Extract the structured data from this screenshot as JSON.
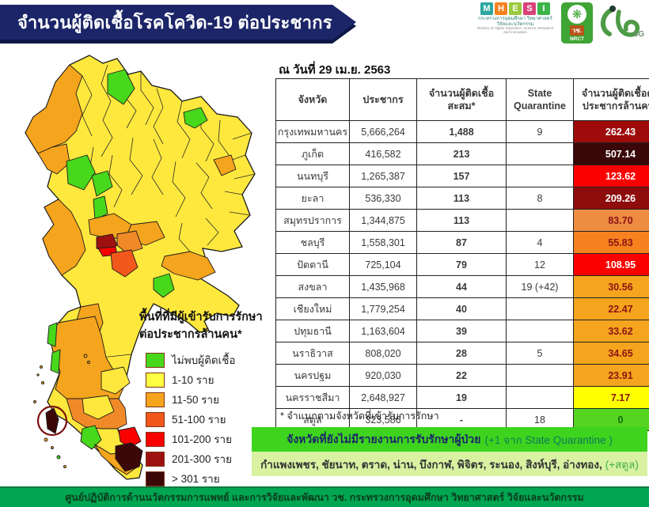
{
  "banner": {
    "title": "จำนวนผู้ติดเชื้อโรคโควิด-19 ต่อประชากร"
  },
  "logos": {
    "mhesi": {
      "letters": [
        {
          "ch": "M",
          "color": "#2ba7a0"
        },
        {
          "ch": "H",
          "color": "#f58220"
        },
        {
          "ch": "E",
          "color": "#9aca3c"
        },
        {
          "ch": "S",
          "color": "#d94179"
        },
        {
          "ch": "I",
          "color": "#3bb54a"
        }
      ],
      "line1": "กระทรวงการอุดมศึกษา วิทยาศาสตร์ วิจัยและนวัตกรรม",
      "line2": "Ministry of Higher Education, Science, Research and Innovation"
    },
    "nrct": {
      "emblem": "wheel-emblem",
      "thai": "วช.",
      "en": "NRCT"
    },
    "wch5g": {
      "label": "5G"
    }
  },
  "date_label": "ณ วันที่ 29 เม.ย. 2563",
  "table": {
    "headers": [
      "จังหวัด",
      "ประชากร",
      "จำนวนผู้ติดเชื้อ\nสะสม*",
      "State\nQuarantine",
      "จำนวนผู้ติดเชื้อต่อ\nประชากรล้านคน*"
    ],
    "rows": [
      {
        "province": "กรุงเทพมหานคร",
        "population": "5,666,264",
        "cases": "1,488",
        "quarantine": "9",
        "rate": "262.43",
        "rate_bg": "#9e0b0b",
        "rate_fg": "#ffffff"
      },
      {
        "province": "ภูเก็ต",
        "population": "416,582",
        "cases": "213",
        "quarantine": "",
        "rate": "507.14",
        "rate_bg": "#3a0708",
        "rate_fg": "#ffffff"
      },
      {
        "province": "นนทบุรี",
        "population": "1,265,387",
        "cases": "157",
        "quarantine": "",
        "rate": "123.62",
        "rate_bg": "#fa0000",
        "rate_fg": "#ffffff"
      },
      {
        "province": "ยะลา",
        "population": "536,330",
        "cases": "113",
        "quarantine": "8",
        "rate": "209.26",
        "rate_bg": "#8e0c0c",
        "rate_fg": "#ffffff"
      },
      {
        "province": "สมุทรปราการ",
        "population": "1,344,875",
        "cases": "113",
        "quarantine": "",
        "rate": "83.70",
        "rate_bg": "#ee8c42",
        "rate_fg": "#8b1414"
      },
      {
        "province": "ชลบุรี",
        "population": "1,558,301",
        "cases": "87",
        "quarantine": "4",
        "rate": "55.83",
        "rate_bg": "#f5821f",
        "rate_fg": "#8b1414"
      },
      {
        "province": "ปัตตานี",
        "population": "725,104",
        "cases": "79",
        "quarantine": "12",
        "rate": "108.95",
        "rate_bg": "#fa0000",
        "rate_fg": "#ffffff"
      },
      {
        "province": "สงขลา",
        "population": "1,435,968",
        "cases": "44",
        "quarantine": "19 (+42)",
        "rate": "30.56",
        "rate_bg": "#f5a41d",
        "rate_fg": "#8b1414"
      },
      {
        "province": "เชียงใหม่",
        "population": "1,779,254",
        "cases": "40",
        "quarantine": "",
        "rate": "22.47",
        "rate_bg": "#f5a41d",
        "rate_fg": "#8b1414"
      },
      {
        "province": "ปทุมธานี",
        "population": "1,163,604",
        "cases": "39",
        "quarantine": "",
        "rate": "33.62",
        "rate_bg": "#f5a41d",
        "rate_fg": "#8b1414"
      },
      {
        "province": "นราธิวาส",
        "population": "808,020",
        "cases": "28",
        "quarantine": "5",
        "rate": "34.65",
        "rate_bg": "#f5a41d",
        "rate_fg": "#8b1414"
      },
      {
        "province": "นครปฐม",
        "population": "920,030",
        "cases": "22",
        "quarantine": "",
        "rate": "23.91",
        "rate_bg": "#f5a41d",
        "rate_fg": "#8b1414"
      },
      {
        "province": "นครราชสีมา",
        "population": "2,648,927",
        "cases": "19",
        "quarantine": "",
        "rate": "7.17",
        "rate_bg": "#ffff00",
        "rate_fg": "#8b1414"
      },
      {
        "province": "สตูล",
        "population": "323,586",
        "cases": "-",
        "quarantine": "18",
        "rate": "0",
        "rate_bg": "#55d420",
        "rate_fg": "#0b6b0b"
      }
    ],
    "footnote": "* จำแนกตามจังหวัดที่เข้ารับการรักษา"
  },
  "map_legend": {
    "title": "พื้นที่ที่มีผู้เข้ารับการรักษา\nต่อประชากรล้านคน*",
    "items": [
      {
        "label": "ไม่พบผู้ติดเชื้อ",
        "color": "#47d81c"
      },
      {
        "label": "1-10 ราย",
        "color": "#ffff42"
      },
      {
        "label": "11-50 ราย",
        "color": "#f5a41d"
      },
      {
        "label": "51-100 ราย",
        "color": "#f2581c"
      },
      {
        "label": "101-200 ราย",
        "color": "#fa0000"
      },
      {
        "label": "201-300 ราย",
        "color": "#9e1111"
      },
      {
        "label": "> 301 ราย",
        "color": "#3c0708"
      }
    ]
  },
  "no_report_box": {
    "header_main": "จังหวัดที่ยังไม่มีรายงานการรับรักษาผู้ป่วย",
    "header_paren": "(+1 จาก State Quarantine )",
    "provinces": "กำแพงเพชร, ชัยนาท, ตราด, น่าน, บึงกาฬ, พิจิตร, ระนอง, สิงห์บุรี, อ่างทอง,",
    "provinces_paren": "(+สตูล)"
  },
  "footer": {
    "text": "ศูนย์ปฏิบัติการด้านนวัตกรรมการแพทย์ และการวิจัยและพัฒนา วช.   กระทรวงการอุดมศึกษา วิทยาศาสตร์ วิจัยและนวัตกรรม"
  },
  "chart_data": [
    {
      "type": "table",
      "title": "จำนวนผู้ติดเชื้อโรคโควิด-19 ต่อประชากร",
      "as_of": "ณ วันที่ 29 เม.ย. 2563",
      "columns": [
        "จังหวัด",
        "ประชากร",
        "จำนวนผู้ติดเชื้อสะสม*",
        "State Quarantine",
        "จำนวนผู้ติดเชื้อต่อประชากรล้านคน*"
      ],
      "rows": [
        [
          "กรุงเทพมหานคร",
          5666264,
          1488,
          "9",
          262.43
        ],
        [
          "ภูเก็ต",
          416582,
          213,
          "",
          507.14
        ],
        [
          "นนทบุรี",
          1265387,
          157,
          "",
          123.62
        ],
        [
          "ยะลา",
          536330,
          113,
          "8",
          209.26
        ],
        [
          "สมุทรปราการ",
          1344875,
          113,
          "",
          83.7
        ],
        [
          "ชลบุรี",
          1558301,
          87,
          "4",
          55.83
        ],
        [
          "ปัตตานี",
          725104,
          79,
          "12",
          108.95
        ],
        [
          "สงขลา",
          1435968,
          44,
          "19 (+42)",
          30.56
        ],
        [
          "เชียงใหม่",
          1779254,
          40,
          "",
          22.47
        ],
        [
          "ปทุมธานี",
          1163604,
          39,
          "",
          33.62
        ],
        [
          "นราธิวาส",
          808020,
          28,
          "5",
          34.65
        ],
        [
          "นครปฐม",
          920030,
          22,
          "",
          23.91
        ],
        [
          "นครราชสีมา",
          2648927,
          19,
          "",
          7.17
        ],
        [
          "สตูล",
          323586,
          null,
          "18",
          0
        ]
      ],
      "footnote": "* จำแนกตามจังหวัดที่เข้ารับการรักษา"
    },
    {
      "type": "heatmap",
      "subtype": "choropleth-map-of-thailand",
      "legend_title": "พื้นที่ที่มีผู้เข้ารับการรักษาต่อประชากรล้านคน*",
      "buckets": [
        {
          "label": "ไม่พบผู้ติดเชื้อ",
          "color": "#47d81c"
        },
        {
          "label": "1-10 ราย",
          "color": "#ffff42"
        },
        {
          "label": "11-50 ราย",
          "color": "#f5a41d"
        },
        {
          "label": "51-100 ราย",
          "color": "#f2581c"
        },
        {
          "label": "101-200 ราย",
          "color": "#fa0000"
        },
        {
          "label": "201-300 ราย",
          "color": "#9e1111"
        },
        {
          "label": "> 301 ราย",
          "color": "#3c0708"
        }
      ],
      "annotations": [
        "dark-red circle highlighting Phuket island"
      ]
    }
  ]
}
